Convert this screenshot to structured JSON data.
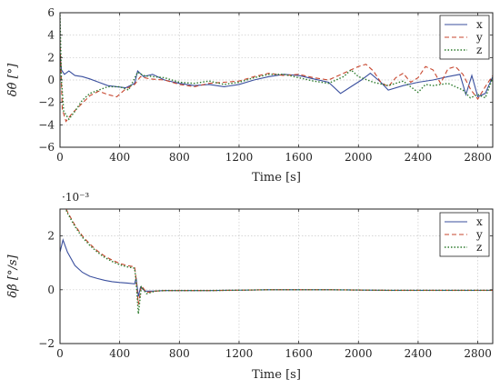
{
  "chart_data": [
    {
      "type": "line",
      "xlabel": "Time [s]",
      "ylabel": "δθ̂ [°]",
      "xlim": [
        0,
        2900
      ],
      "ylim": [
        -6,
        6
      ],
      "xticks": [
        "0",
        "400",
        "800",
        "1200",
        "1600",
        "2000",
        "2400",
        "2800"
      ],
      "yticks": [
        "−6",
        "−4",
        "−2",
        "0",
        "2",
        "4",
        "6"
      ],
      "grid": true,
      "legend_position": "top-right",
      "series": [
        {
          "name": "x",
          "color": "#3a4f9e",
          "style": "solid",
          "points": [
            [
              0,
              2.4
            ],
            [
              10,
              0.9
            ],
            [
              30,
              0.5
            ],
            [
              60,
              0.8
            ],
            [
              100,
              0.4
            ],
            [
              150,
              0.3
            ],
            [
              200,
              0.1
            ],
            [
              260,
              -0.2
            ],
            [
              320,
              -0.5
            ],
            [
              380,
              -0.6
            ],
            [
              440,
              -0.7
            ],
            [
              500,
              -0.3
            ],
            [
              520,
              0.8
            ],
            [
              560,
              0.3
            ],
            [
              620,
              0.5
            ],
            [
              700,
              0.0
            ],
            [
              800,
              -0.3
            ],
            [
              900,
              -0.5
            ],
            [
              1000,
              -0.4
            ],
            [
              1100,
              -0.6
            ],
            [
              1200,
              -0.4
            ],
            [
              1300,
              0.0
            ],
            [
              1400,
              0.3
            ],
            [
              1500,
              0.5
            ],
            [
              1600,
              0.4
            ],
            [
              1700,
              0.1
            ],
            [
              1800,
              -0.2
            ],
            [
              1880,
              -1.2
            ],
            [
              1950,
              -0.6
            ],
            [
              2020,
              0.0
            ],
            [
              2080,
              0.6
            ],
            [
              2150,
              -0.2
            ],
            [
              2200,
              -0.9
            ],
            [
              2300,
              -0.5
            ],
            [
              2400,
              -0.2
            ],
            [
              2500,
              0.0
            ],
            [
              2600,
              0.3
            ],
            [
              2680,
              0.5
            ],
            [
              2720,
              -1.3
            ],
            [
              2760,
              0.4
            ],
            [
              2800,
              -1.5
            ],
            [
              2850,
              -1.2
            ],
            [
              2900,
              0.3
            ]
          ]
        },
        {
          "name": "y",
          "color": "#c7462e",
          "style": "dashed",
          "points": [
            [
              0,
              3.6
            ],
            [
              15,
              -2.6
            ],
            [
              40,
              -3.7
            ],
            [
              80,
              -3.0
            ],
            [
              140,
              -2.2
            ],
            [
              200,
              -1.4
            ],
            [
              260,
              -1.0
            ],
            [
              320,
              -1.3
            ],
            [
              380,
              -1.5
            ],
            [
              440,
              -0.8
            ],
            [
              500,
              -0.4
            ],
            [
              540,
              0.3
            ],
            [
              600,
              0.1
            ],
            [
              700,
              0.0
            ],
            [
              800,
              -0.4
            ],
            [
              900,
              -0.6
            ],
            [
              1000,
              -0.3
            ],
            [
              1100,
              -0.2
            ],
            [
              1200,
              -0.1
            ],
            [
              1300,
              0.3
            ],
            [
              1400,
              0.6
            ],
            [
              1500,
              0.4
            ],
            [
              1600,
              0.5
            ],
            [
              1700,
              0.2
            ],
            [
              1800,
              0.0
            ],
            [
              1900,
              0.6
            ],
            [
              2000,
              1.2
            ],
            [
              2050,
              1.4
            ],
            [
              2100,
              0.8
            ],
            [
              2150,
              -0.2
            ],
            [
              2200,
              -0.6
            ],
            [
              2250,
              0.2
            ],
            [
              2300,
              0.6
            ],
            [
              2350,
              -0.2
            ],
            [
              2400,
              0.2
            ],
            [
              2450,
              1.2
            ],
            [
              2500,
              0.9
            ],
            [
              2550,
              -0.3
            ],
            [
              2600,
              1.0
            ],
            [
              2650,
              1.2
            ],
            [
              2700,
              0.5
            ],
            [
              2750,
              -0.8
            ],
            [
              2800,
              -1.7
            ],
            [
              2850,
              -0.6
            ],
            [
              2900,
              0.4
            ]
          ]
        },
        {
          "name": "z",
          "color": "#2c7a2c",
          "style": "dotted",
          "points": [
            [
              0,
              5.8
            ],
            [
              10,
              0.0
            ],
            [
              25,
              -2.8
            ],
            [
              60,
              -3.5
            ],
            [
              100,
              -2.8
            ],
            [
              150,
              -1.8
            ],
            [
              200,
              -1.2
            ],
            [
              260,
              -0.9
            ],
            [
              320,
              -0.6
            ],
            [
              400,
              -0.6
            ],
            [
              460,
              -0.9
            ],
            [
              520,
              0.7
            ],
            [
              560,
              0.4
            ],
            [
              620,
              0.3
            ],
            [
              700,
              0.2
            ],
            [
              800,
              -0.2
            ],
            [
              900,
              -0.3
            ],
            [
              1000,
              -0.1
            ],
            [
              1100,
              -0.4
            ],
            [
              1200,
              -0.2
            ],
            [
              1300,
              0.2
            ],
            [
              1400,
              0.5
            ],
            [
              1500,
              0.5
            ],
            [
              1600,
              0.2
            ],
            [
              1700,
              -0.1
            ],
            [
              1800,
              -0.3
            ],
            [
              1900,
              0.3
            ],
            [
              1950,
              0.9
            ],
            [
              2000,
              0.3
            ],
            [
              2100,
              -0.2
            ],
            [
              2200,
              -0.5
            ],
            [
              2300,
              -0.1
            ],
            [
              2350,
              -0.6
            ],
            [
              2400,
              -1.1
            ],
            [
              2450,
              -0.4
            ],
            [
              2500,
              -0.5
            ],
            [
              2600,
              -0.3
            ],
            [
              2700,
              -0.9
            ],
            [
              2750,
              -1.6
            ],
            [
              2800,
              -1.3
            ],
            [
              2850,
              -1.6
            ],
            [
              2900,
              0.2
            ]
          ]
        }
      ]
    },
    {
      "type": "line",
      "xlabel": "Time [s]",
      "ylabel": "δβ̂ [°/s]",
      "y_scale_label": "·10⁻³",
      "xlim": [
        0,
        2900
      ],
      "ylim": [
        -2,
        3
      ],
      "xticks": [
        "0",
        "400",
        "800",
        "1200",
        "1600",
        "2000",
        "2400",
        "2800"
      ],
      "yticks": [
        "−2",
        "0",
        "2"
      ],
      "grid": true,
      "legend_position": "top-right",
      "series": [
        {
          "name": "x",
          "color": "#3a4f9e",
          "style": "solid",
          "points": [
            [
              0,
              1.4
            ],
            [
              20,
              1.85
            ],
            [
              50,
              1.4
            ],
            [
              100,
              0.9
            ],
            [
              150,
              0.65
            ],
            [
              200,
              0.5
            ],
            [
              250,
              0.42
            ],
            [
              300,
              0.35
            ],
            [
              350,
              0.3
            ],
            [
              400,
              0.27
            ],
            [
              450,
              0.25
            ],
            [
              500,
              0.22
            ],
            [
              510,
              0.45
            ],
            [
              525,
              -0.25
            ],
            [
              540,
              0.1
            ],
            [
              570,
              -0.05
            ],
            [
              620,
              -0.05
            ],
            [
              700,
              -0.03
            ],
            [
              1000,
              -0.03
            ],
            [
              1400,
              0.0
            ],
            [
              1800,
              0.0
            ],
            [
              2200,
              -0.02
            ],
            [
              2600,
              -0.02
            ],
            [
              2900,
              -0.02
            ]
          ]
        },
        {
          "name": "y",
          "color": "#c7462e",
          "style": "dashed",
          "points": [
            [
              0,
              3.5
            ],
            [
              50,
              2.9
            ],
            [
              100,
              2.4
            ],
            [
              150,
              2.0
            ],
            [
              200,
              1.7
            ],
            [
              250,
              1.45
            ],
            [
              300,
              1.25
            ],
            [
              350,
              1.1
            ],
            [
              400,
              0.98
            ],
            [
              450,
              0.9
            ],
            [
              500,
              0.85
            ],
            [
              510,
              0.4
            ],
            [
              525,
              -0.55
            ],
            [
              545,
              0.15
            ],
            [
              580,
              -0.1
            ],
            [
              640,
              -0.05
            ],
            [
              700,
              -0.03
            ],
            [
              1000,
              -0.03
            ],
            [
              1400,
              0.0
            ],
            [
              1800,
              0.0
            ],
            [
              2200,
              -0.02
            ],
            [
              2600,
              -0.02
            ],
            [
              2900,
              -0.02
            ]
          ]
        },
        {
          "name": "z",
          "color": "#2c7a2c",
          "style": "dotted",
          "points": [
            [
              0,
              3.5
            ],
            [
              50,
              2.85
            ],
            [
              100,
              2.35
            ],
            [
              150,
              1.95
            ],
            [
              200,
              1.65
            ],
            [
              250,
              1.4
            ],
            [
              300,
              1.2
            ],
            [
              350,
              1.05
            ],
            [
              400,
              0.93
            ],
            [
              450,
              0.85
            ],
            [
              500,
              0.8
            ],
            [
              510,
              0.3
            ],
            [
              525,
              -0.9
            ],
            [
              545,
              0.1
            ],
            [
              580,
              -0.15
            ],
            [
              640,
              -0.05
            ],
            [
              700,
              -0.03
            ],
            [
              1000,
              -0.03
            ],
            [
              1400,
              0.0
            ],
            [
              1800,
              0.0
            ],
            [
              2200,
              -0.02
            ],
            [
              2600,
              -0.02
            ],
            [
              2900,
              -0.02
            ]
          ]
        }
      ]
    }
  ]
}
